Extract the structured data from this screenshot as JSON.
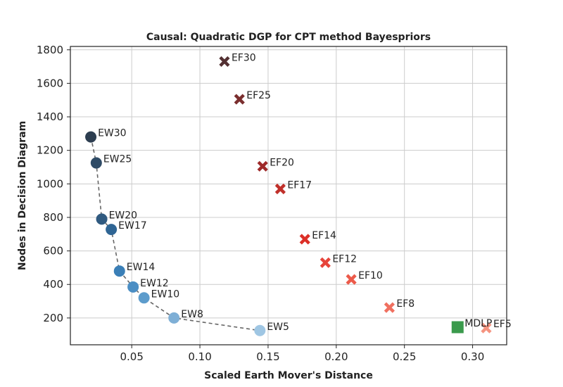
{
  "chart_data": {
    "type": "scatter",
    "title": "Causal: Quadratic DGP for CPT method Bayespriors",
    "xlabel": "Scaled Earth Mover's Distance",
    "ylabel": "Nodes in Decision Diagram",
    "xlim": [
      0.005,
      0.325
    ],
    "ylim": [
      40,
      1820
    ],
    "xticks": [
      0.05,
      0.1,
      0.15,
      0.2,
      0.25,
      0.3
    ],
    "xtick_labels": [
      "0.05",
      "0.10",
      "0.15",
      "0.20",
      "0.25",
      "0.30"
    ],
    "yticks": [
      200,
      400,
      600,
      800,
      1000,
      1200,
      1400,
      1600,
      1800
    ],
    "ytick_labels": [
      "200",
      "400",
      "600",
      "800",
      "1000",
      "1200",
      "1400",
      "1600",
      "1800"
    ],
    "grid": true,
    "series": [
      {
        "marker": "circle",
        "connected": true,
        "line_style": "dashed",
        "line_color": "#666666",
        "points": [
          {
            "label": "EW30",
            "x": 0.02,
            "y": 1280,
            "color": "#2d3e50"
          },
          {
            "label": "EW25",
            "x": 0.024,
            "y": 1125,
            "color": "#2f4b66"
          },
          {
            "label": "EW20",
            "x": 0.028,
            "y": 790,
            "color": "#305a80"
          },
          {
            "label": "EW17",
            "x": 0.035,
            "y": 728,
            "color": "#2f6594"
          },
          {
            "label": "EW14",
            "x": 0.041,
            "y": 480,
            "color": "#3a7fb7"
          },
          {
            "label": "EW12",
            "x": 0.051,
            "y": 385,
            "color": "#4b8ec4"
          },
          {
            "label": "EW10",
            "x": 0.059,
            "y": 320,
            "color": "#5d9ccc"
          },
          {
            "label": "EW8",
            "x": 0.081,
            "y": 200,
            "color": "#7eafd6"
          },
          {
            "label": "EW5",
            "x": 0.144,
            "y": 125,
            "color": "#9fc6e3"
          }
        ]
      },
      {
        "marker": "x",
        "connected": false,
        "points": [
          {
            "label": "EF30",
            "x": 0.118,
            "y": 1730,
            "color": "#533032"
          },
          {
            "label": "EF25",
            "x": 0.129,
            "y": 1505,
            "color": "#7a2e2e"
          },
          {
            "label": "EF20",
            "x": 0.146,
            "y": 1105,
            "color": "#9e2a2a"
          },
          {
            "label": "EF17",
            "x": 0.159,
            "y": 970,
            "color": "#c0302a"
          },
          {
            "label": "EF14",
            "x": 0.177,
            "y": 670,
            "color": "#dc2f27"
          },
          {
            "label": "EF12",
            "x": 0.192,
            "y": 530,
            "color": "#e6443a"
          },
          {
            "label": "EF10",
            "x": 0.211,
            "y": 430,
            "color": "#ec5a4a"
          },
          {
            "label": "EF8",
            "x": 0.239,
            "y": 262,
            "color": "#f07060"
          },
          {
            "label": "EF5",
            "x": 0.31,
            "y": 140,
            "color": "#f5937f"
          }
        ]
      },
      {
        "marker": "square",
        "connected": false,
        "points": [
          {
            "label": "MDLP",
            "x": 0.289,
            "y": 145,
            "color": "#3a9a4c"
          }
        ]
      }
    ]
  }
}
